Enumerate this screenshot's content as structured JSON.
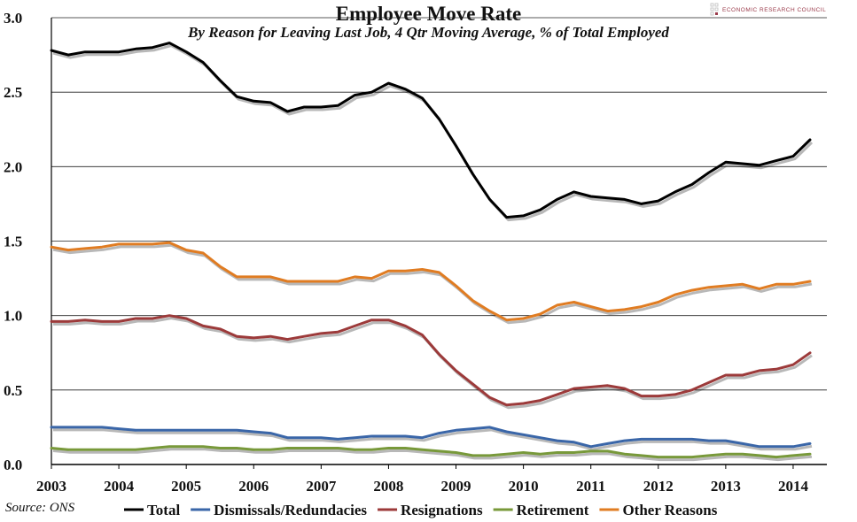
{
  "chart_data": {
    "type": "line",
    "title": "Employee Move Rate",
    "subtitle": "By Reason for Leaving Last Job, 4 Qtr Moving Average, % of Total Employed",
    "source": "Source: ONS",
    "brand": "ECONOMIC RESEARCH COUNCIL",
    "xlabel": "",
    "ylabel": "",
    "ylim": [
      0,
      3.0
    ],
    "yticks": [
      "0.0",
      "0.5",
      "1.0",
      "1.5",
      "2.0",
      "2.5",
      "3.0"
    ],
    "xlim": [
      2003.0,
      2014.5
    ],
    "xticks": [
      "2003",
      "2004",
      "2005",
      "2006",
      "2007",
      "2008",
      "2009",
      "2010",
      "2011",
      "2012",
      "2013",
      "2014"
    ],
    "grid": true,
    "legend_position": "bottom",
    "x": [
      2003.0,
      2003.25,
      2003.5,
      2003.75,
      2004.0,
      2004.25,
      2004.5,
      2004.75,
      2005.0,
      2005.25,
      2005.5,
      2005.75,
      2006.0,
      2006.25,
      2006.5,
      2006.75,
      2007.0,
      2007.25,
      2007.5,
      2007.75,
      2008.0,
      2008.25,
      2008.5,
      2008.75,
      2009.0,
      2009.25,
      2009.5,
      2009.75,
      2010.0,
      2010.25,
      2010.5,
      2010.75,
      2011.0,
      2011.25,
      2011.5,
      2011.75,
      2012.0,
      2012.25,
      2012.5,
      2012.75,
      2013.0,
      2013.25,
      2013.5,
      2013.75,
      2014.0,
      2014.25
    ],
    "series": [
      {
        "name": "Total",
        "color": "#000000",
        "values": [
          2.78,
          2.75,
          2.77,
          2.77,
          2.77,
          2.79,
          2.8,
          2.83,
          2.77,
          2.7,
          2.58,
          2.47,
          2.44,
          2.43,
          2.37,
          2.4,
          2.4,
          2.41,
          2.48,
          2.5,
          2.56,
          2.52,
          2.46,
          2.32,
          2.14,
          1.95,
          1.78,
          1.66,
          1.67,
          1.71,
          1.78,
          1.83,
          1.8,
          1.79,
          1.78,
          1.75,
          1.77,
          1.83,
          1.88,
          1.96,
          2.03,
          2.02,
          2.01,
          2.04,
          2.07,
          2.18
        ]
      },
      {
        "name": "Dismissals/Redundacies",
        "color": "#3a66a8",
        "values": [
          0.25,
          0.25,
          0.25,
          0.25,
          0.24,
          0.23,
          0.23,
          0.23,
          0.23,
          0.23,
          0.23,
          0.23,
          0.22,
          0.21,
          0.18,
          0.18,
          0.18,
          0.17,
          0.18,
          0.19,
          0.19,
          0.19,
          0.18,
          0.21,
          0.23,
          0.24,
          0.25,
          0.22,
          0.2,
          0.18,
          0.16,
          0.15,
          0.12,
          0.14,
          0.16,
          0.17,
          0.17,
          0.17,
          0.17,
          0.16,
          0.16,
          0.14,
          0.12,
          0.12,
          0.12,
          0.14
        ]
      },
      {
        "name": "Resignations",
        "color": "#9c3a3a",
        "values": [
          0.96,
          0.96,
          0.97,
          0.96,
          0.96,
          0.98,
          0.98,
          1.0,
          0.98,
          0.93,
          0.91,
          0.86,
          0.85,
          0.86,
          0.84,
          0.86,
          0.88,
          0.89,
          0.93,
          0.97,
          0.97,
          0.93,
          0.87,
          0.74,
          0.63,
          0.54,
          0.45,
          0.4,
          0.41,
          0.43,
          0.47,
          0.51,
          0.52,
          0.53,
          0.51,
          0.46,
          0.46,
          0.47,
          0.5,
          0.55,
          0.6,
          0.6,
          0.63,
          0.64,
          0.67,
          0.75
        ]
      },
      {
        "name": "Retirement",
        "color": "#78993a",
        "values": [
          0.11,
          0.1,
          0.1,
          0.1,
          0.1,
          0.1,
          0.11,
          0.12,
          0.12,
          0.12,
          0.11,
          0.11,
          0.1,
          0.1,
          0.11,
          0.11,
          0.11,
          0.11,
          0.1,
          0.1,
          0.11,
          0.11,
          0.1,
          0.09,
          0.08,
          0.06,
          0.06,
          0.07,
          0.08,
          0.07,
          0.08,
          0.08,
          0.09,
          0.09,
          0.07,
          0.06,
          0.05,
          0.05,
          0.05,
          0.06,
          0.07,
          0.07,
          0.06,
          0.05,
          0.06,
          0.07
        ]
      },
      {
        "name": "Other Reasons",
        "color": "#e07c22",
        "values": [
          1.46,
          1.44,
          1.45,
          1.46,
          1.48,
          1.48,
          1.48,
          1.49,
          1.44,
          1.42,
          1.33,
          1.26,
          1.26,
          1.26,
          1.23,
          1.23,
          1.23,
          1.23,
          1.26,
          1.25,
          1.3,
          1.3,
          1.31,
          1.29,
          1.2,
          1.1,
          1.03,
          0.97,
          0.98,
          1.01,
          1.07,
          1.09,
          1.06,
          1.03,
          1.04,
          1.06,
          1.09,
          1.14,
          1.17,
          1.19,
          1.2,
          1.21,
          1.18,
          1.21,
          1.21,
          1.23
        ]
      }
    ]
  }
}
